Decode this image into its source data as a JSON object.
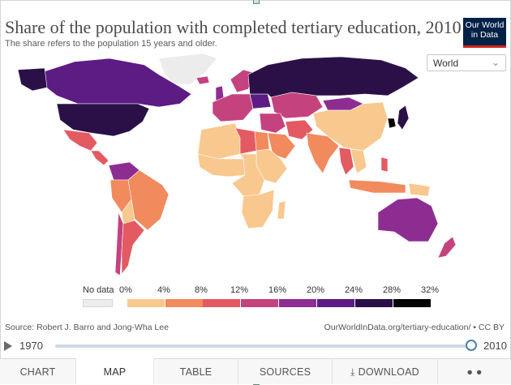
{
  "header": {
    "title": "Share of the population with completed tertiary education, 2010",
    "subtitle": "The share refers to the population 15 years and older."
  },
  "logo": {
    "line1": "Our World",
    "line2": "in Data"
  },
  "region_select": {
    "value": "World"
  },
  "legend": {
    "no_data_label": "No data",
    "no_data_color": "#ececec",
    "ticks": [
      "0%",
      "4%",
      "8%",
      "12%",
      "16%",
      "20%",
      "24%",
      "28%",
      "32%"
    ],
    "bins": [
      {
        "color": "#f8c88f"
      },
      {
        "color": "#f18a5d"
      },
      {
        "color": "#e35a62"
      },
      {
        "color": "#c4437f"
      },
      {
        "color": "#8e2d91"
      },
      {
        "color": "#5c1c84"
      },
      {
        "color": "#2b1048"
      },
      {
        "color": "#050505"
      }
    ]
  },
  "map_colors": {
    "ocean": "#ffffff",
    "no_data": "#ececec",
    "border": "#ffffff"
  },
  "regions": [
    {
      "name": "Canada",
      "color": "#5c1c84"
    },
    {
      "name": "Greenland",
      "color": "#ececec"
    },
    {
      "name": "United States",
      "color": "#2b1048"
    },
    {
      "name": "Mexico",
      "color": "#e35a62"
    },
    {
      "name": "Central America",
      "color": "#e35a62"
    },
    {
      "name": "Colombia / Venezuela",
      "color": "#8e2d91"
    },
    {
      "name": "Peru / Ecuador",
      "color": "#f18a5d"
    },
    {
      "name": "Brazil",
      "color": "#f18a5d"
    },
    {
      "name": "Bolivia / Paraguay",
      "color": "#f8c88f"
    },
    {
      "name": "Argentina",
      "color": "#e35a62"
    },
    {
      "name": "Chile",
      "color": "#c4437f"
    },
    {
      "name": "Western Europe",
      "color": "#c4437f"
    },
    {
      "name": "Scandinavia",
      "color": "#c4437f"
    },
    {
      "name": "Iceland",
      "color": "#c4437f"
    },
    {
      "name": "United Kingdom",
      "color": "#8e2d91"
    },
    {
      "name": "Russia",
      "color": "#2b1048"
    },
    {
      "name": "Ukraine",
      "color": "#5c1c84"
    },
    {
      "name": "Kazakhstan / Central Asia",
      "color": "#c4437f"
    },
    {
      "name": "Mongolia",
      "color": "#8e2d91"
    },
    {
      "name": "China",
      "color": "#f8c88f"
    },
    {
      "name": "Japan",
      "color": "#2b1048"
    },
    {
      "name": "South Korea",
      "color": "#050505"
    },
    {
      "name": "Middle East",
      "color": "#c4437f"
    },
    {
      "name": "Saudi Arabia",
      "color": "#f18a5d"
    },
    {
      "name": "Iran",
      "color": "#e35a62"
    },
    {
      "name": "India",
      "color": "#f18a5d"
    },
    {
      "name": "Southeast Asia",
      "color": "#f8c88f"
    },
    {
      "name": "Myanmar / Thailand",
      "color": "#e35a62"
    },
    {
      "name": "Philippines",
      "color": "#e35a62"
    },
    {
      "name": "Indonesia",
      "color": "#f18a5d"
    },
    {
      "name": "North Africa",
      "color": "#f8c88f"
    },
    {
      "name": "Libya",
      "color": "#e35a62"
    },
    {
      "name": "Egypt",
      "color": "#f18a5d"
    },
    {
      "name": "West Africa",
      "color": "#f8c88f"
    },
    {
      "name": "Central Africa",
      "color": "#f8c88f"
    },
    {
      "name": "East Africa",
      "color": "#f8c88f"
    },
    {
      "name": "Southern Africa",
      "color": "#f8c88f"
    },
    {
      "name": "Madagascar",
      "color": "#f8c88f"
    },
    {
      "name": "Australia",
      "color": "#8e2d91"
    },
    {
      "name": "New Zealand",
      "color": "#c4437f"
    },
    {
      "name": "Papua New Guinea",
      "color": "#f8c88f"
    }
  ],
  "footer": {
    "source": "Source: Robert J. Barro and Jong-Wha Lee",
    "url": "OurWorldInData.org/tertiary-education/ • CC BY"
  },
  "timeline": {
    "start": "1970",
    "end": "2010",
    "selected": "2010"
  },
  "tabs": [
    {
      "label": "Chart",
      "active": false
    },
    {
      "label": "Map",
      "active": true
    },
    {
      "label": "Table",
      "active": false
    },
    {
      "label": "Sources",
      "active": false
    },
    {
      "label": "Download",
      "active": false
    }
  ]
}
